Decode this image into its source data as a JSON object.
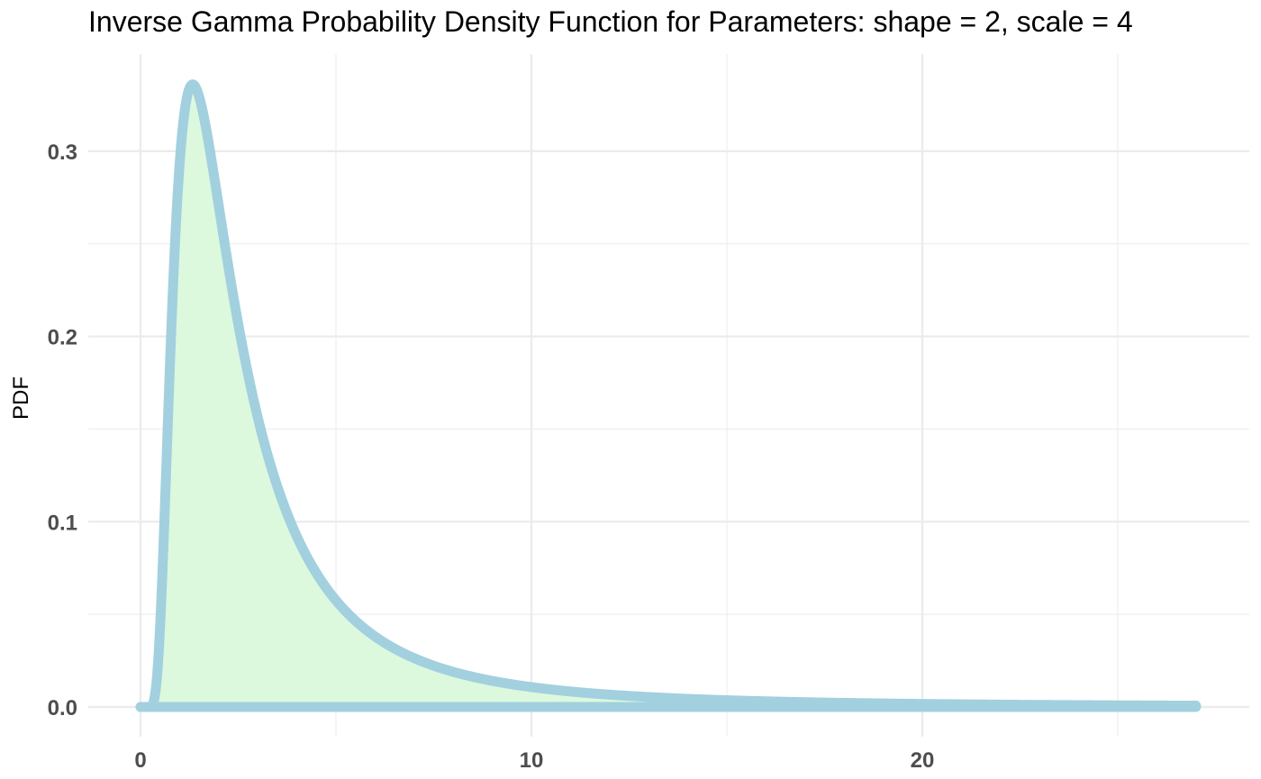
{
  "chart_data": {
    "type": "area",
    "title": "Inverse Gamma Probability Density Function for Parameters: shape = 2, scale = 4",
    "xlabel": "",
    "ylabel": "PDF",
    "shape": 2,
    "scale": 4,
    "xlim": [
      0,
      27
    ],
    "ylim": [
      0,
      0.336
    ],
    "x_ticks": [
      0,
      10,
      20
    ],
    "x_tick_labels": [
      "0",
      "10",
      "20"
    ],
    "x_minor_ticks": [
      5,
      15,
      25
    ],
    "y_ticks": [
      0.0,
      0.1,
      0.2,
      0.3
    ],
    "y_tick_labels": [
      "0.0",
      "0.1",
      "0.2",
      "0.3"
    ],
    "y_minor_ticks": [
      0.05,
      0.15,
      0.25
    ],
    "grid": true,
    "series": [
      {
        "values_x": [
          0,
          0.25,
          0.5,
          0.75,
          1.0,
          1.25,
          1.333,
          1.5,
          1.75,
          2.0,
          2.5,
          3.0,
          3.5,
          4.0,
          5.0,
          6.0,
          7.0,
          8.0,
          10.0,
          12.0,
          15.0,
          20.0,
          25.0,
          27.0
        ],
        "values_y": [
          0,
          0.0,
          0.0096,
          0.1839,
          0.293,
          0.3298,
          0.336,
          0.3282,
          0.3068,
          0.2707,
          0.2075,
          0.156,
          0.1192,
          0.092,
          0.0575,
          0.038,
          0.0264,
          0.019,
          0.0107,
          0.0066,
          0.0035,
          0.0015,
          0.0008,
          0.0006
        ]
      }
    ]
  },
  "colors": {
    "line": "#a2d0df",
    "fill": "#dcf9de",
    "grid": "#ebebeb",
    "tick_text": "#4d4d4d"
  }
}
